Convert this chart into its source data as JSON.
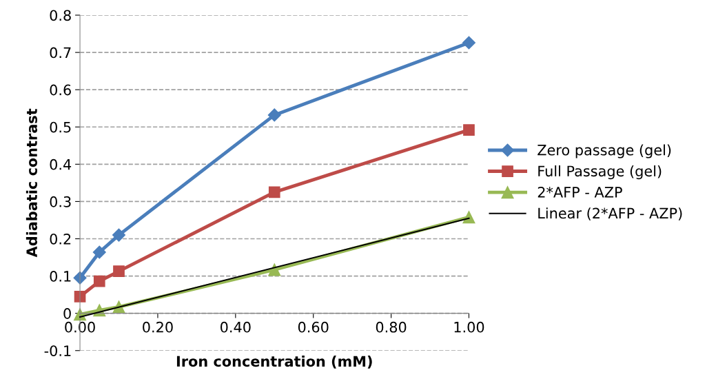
{
  "chart_data": {
    "type": "line",
    "xlabel": "Iron concentration (mM)",
    "ylabel": "Adiabatic contrast",
    "x": [
      0,
      0.05,
      0.1,
      0.5,
      1.0
    ],
    "series": [
      {
        "name": "Zero passage (gel)",
        "color": "#4a7ebb",
        "marker": "diamond",
        "values": [
          0.095,
          0.164,
          0.21,
          0.532,
          0.726
        ]
      },
      {
        "name": "Full Passage (gel)",
        "color": "#be4b48",
        "marker": "square",
        "values": [
          0.045,
          0.086,
          0.113,
          0.325,
          0.492
        ]
      },
      {
        "name": "2*AFP - AZP",
        "color": "#98b954",
        "marker": "triangle",
        "values": [
          -0.003,
          0.008,
          0.017,
          0.117,
          0.258
        ]
      },
      {
        "name": "Linear (2*AFP - AZP)",
        "color": "#000000",
        "marker": "none",
        "x": [
          0,
          1.0
        ],
        "values": [
          -0.01,
          0.255
        ]
      }
    ],
    "xlim": [
      0,
      1.0
    ],
    "xticks": [
      {
        "value": 0,
        "label": "0.00"
      },
      {
        "value": 0.2,
        "label": "0.20"
      },
      {
        "value": 0.4,
        "label": "0.40"
      },
      {
        "value": 0.6,
        "label": "0.60"
      },
      {
        "value": 0.8,
        "label": "0.80"
      },
      {
        "value": 1.0,
        "label": "1.00"
      }
    ],
    "ylim": [
      -0.1,
      0.8
    ],
    "yticks": [
      -0.1,
      0,
      0.1,
      0.2,
      0.3,
      0.4,
      0.5,
      0.6,
      0.7,
      0.8
    ],
    "grid": "y",
    "legend": "right",
    "line_style": "solid"
  }
}
